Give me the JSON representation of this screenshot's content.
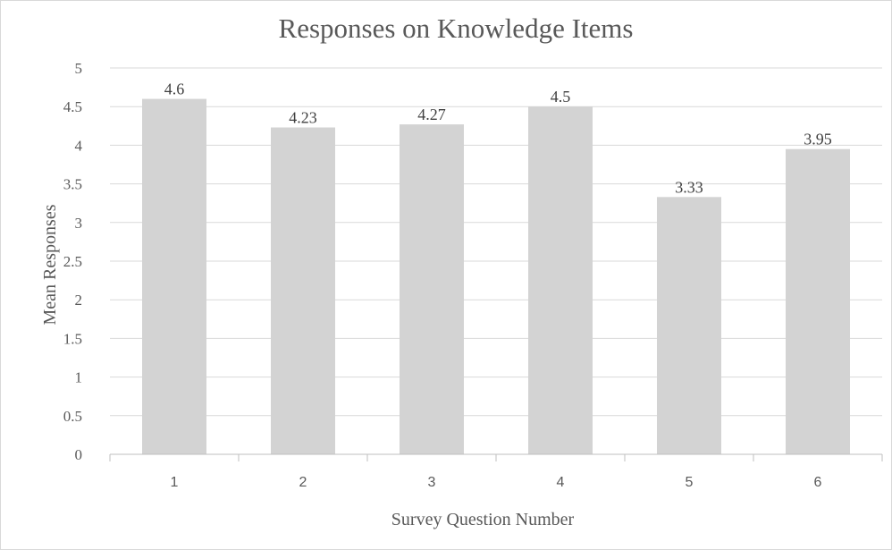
{
  "chart_data": {
    "type": "bar",
    "title": "Responses on Knowledge Items",
    "xlabel": "Survey Question Number",
    "ylabel": "Mean Responses",
    "categories": [
      "1",
      "2",
      "3",
      "4",
      "5",
      "6"
    ],
    "values": [
      4.6,
      4.23,
      4.27,
      4.5,
      3.33,
      3.95
    ],
    "data_labels": [
      "4.6",
      "4.23",
      "4.27",
      "4.5",
      "3.33",
      "3.95"
    ],
    "ylim": [
      0,
      5
    ],
    "yticks": [
      0,
      0.5,
      1,
      1.5,
      2,
      2.5,
      3,
      3.5,
      4,
      4.5,
      5
    ],
    "grid": true,
    "legend": "none",
    "colors": {
      "bar": "#d3d3d3",
      "grid": "#d9d9d9",
      "axis": "#bfbfbf",
      "text": "#595959"
    }
  }
}
